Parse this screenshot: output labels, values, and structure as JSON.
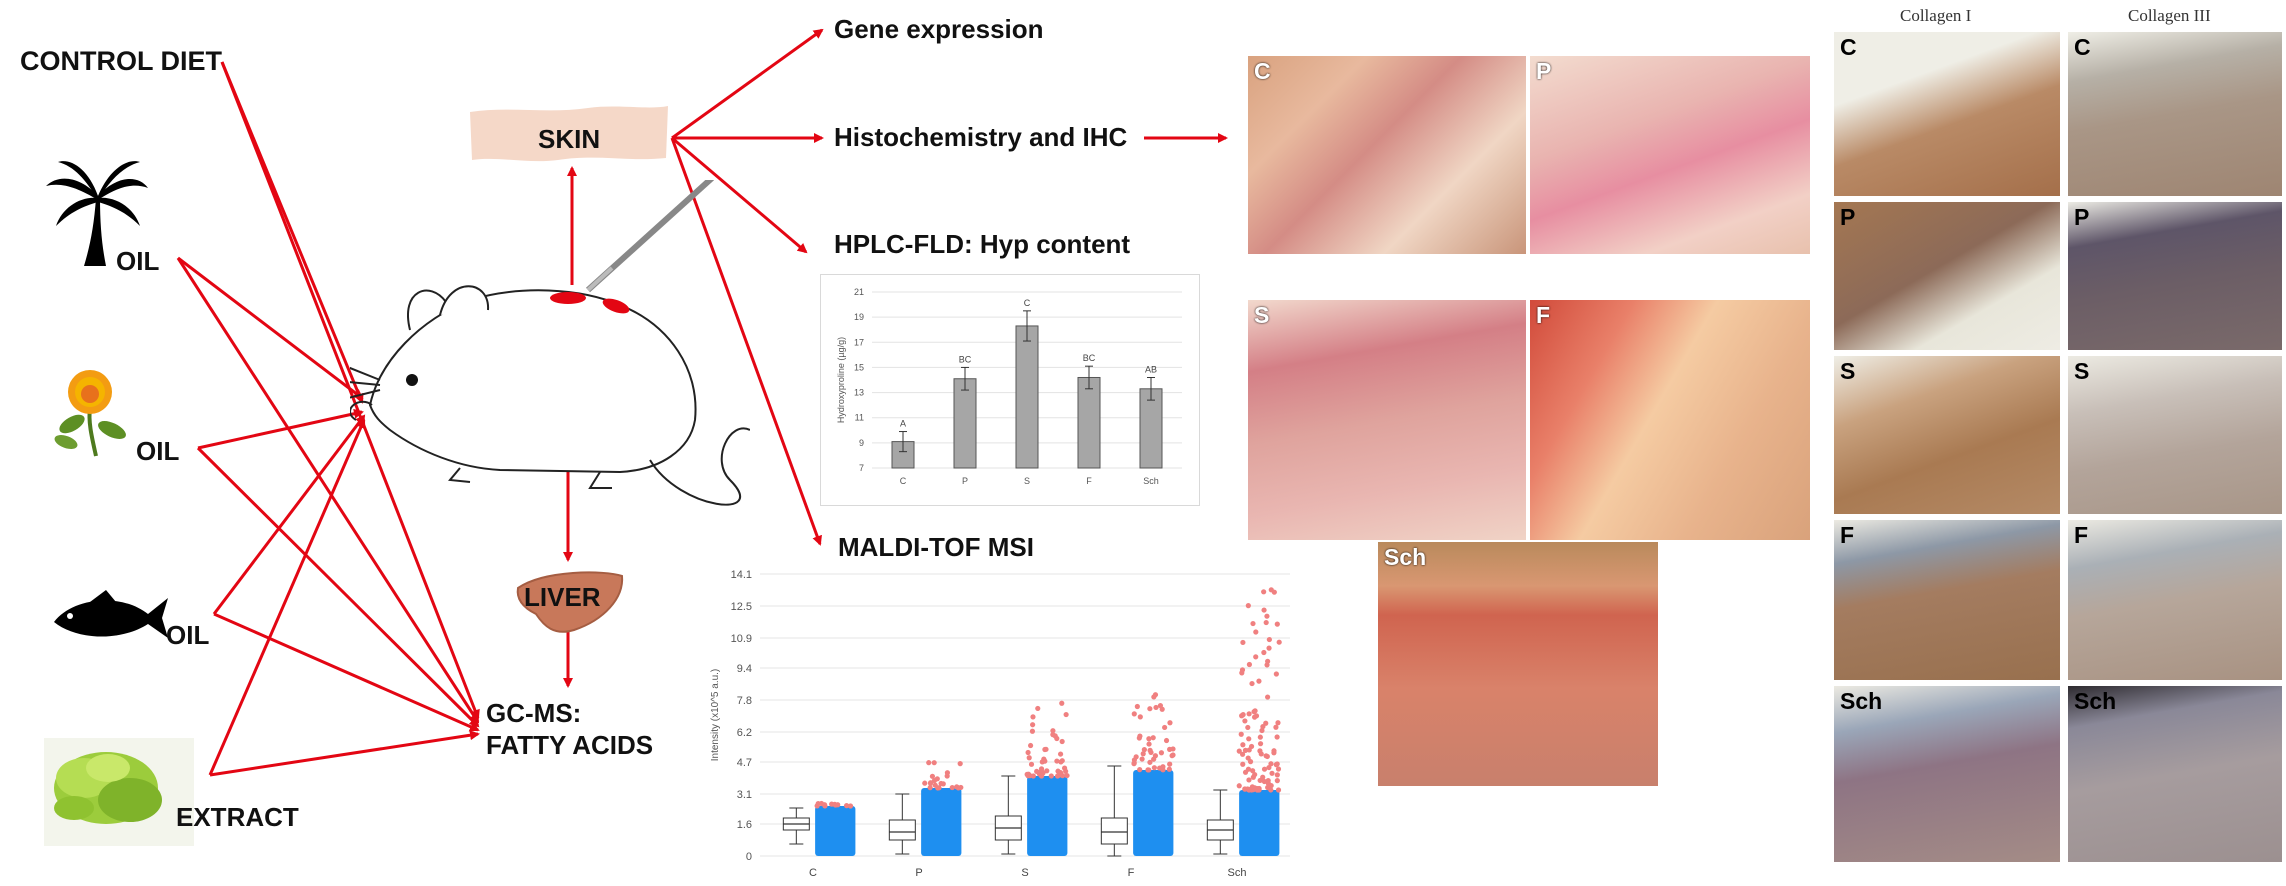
{
  "inputs": {
    "control_diet": "CONTROL DIET",
    "palm_oil": "OIL",
    "safflower_oil": "OIL",
    "fish_oil": "OIL",
    "algae_extract": "EXTRACT"
  },
  "organs": {
    "skin": "SKIN",
    "liver": "LIVER"
  },
  "outputs": {
    "gene_expression": "Gene expression",
    "histochemistry": "Histochemistry and IHC",
    "hplc": "HPLC-FLD: Hyp content",
    "maldi": "MALDI-TOF MSI",
    "gcms_line1": "GC-MS:",
    "gcms_line2": "FATTY ACIDS"
  },
  "colors": {
    "arrow": "#e30613",
    "bar": "#a6a6a6",
    "box_fill": "#1e8ff0",
    "outlier": "#f08080"
  },
  "chart_data": [
    {
      "type": "bar",
      "categories": [
        "C",
        "P",
        "S",
        "F",
        "Sch"
      ],
      "values": [
        9.1,
        14.1,
        18.3,
        14.2,
        13.3
      ],
      "errors": [
        0.8,
        0.9,
        1.2,
        0.9,
        0.9
      ],
      "letters": [
        "A",
        "BC",
        "C",
        "BC",
        "AB"
      ],
      "ylabel": "Hydroxyproline (µg/g)",
      "ylim": [
        7,
        21
      ],
      "yticks": [
        7,
        9,
        11,
        13,
        15,
        17,
        19,
        21
      ],
      "grid": true
    },
    {
      "type": "box",
      "categories": [
        "C",
        "P",
        "S",
        "F",
        "Sch"
      ],
      "ylabel": "Intensity (x10^5 a.u.)",
      "yticks": [
        "0",
        "1.6",
        "3.1",
        "4.7",
        "6.2",
        "7.8",
        "9.4",
        "10.9",
        "12.5",
        "14.1"
      ],
      "ylim": [
        0,
        14.1
      ],
      "box_stats": [
        {
          "min": 0.6,
          "q1": 1.3,
          "median": 1.6,
          "q3": 1.9,
          "max": 2.4
        },
        {
          "min": 0.1,
          "q1": 0.8,
          "median": 1.2,
          "q3": 1.8,
          "max": 3.1
        },
        {
          "min": 0.1,
          "q1": 0.8,
          "median": 1.4,
          "q3": 2.0,
          "max": 4.0
        },
        {
          "min": 0.0,
          "q1": 0.6,
          "median": 1.2,
          "q3": 1.9,
          "max": 4.5
        },
        {
          "min": 0.1,
          "q1": 0.8,
          "median": 1.3,
          "q3": 1.8,
          "max": 3.3
        }
      ],
      "scatter_max": [
        2.5,
        3.4,
        4.0,
        4.3,
        3.3
      ],
      "outlier_max": [
        2.8,
        4.8,
        8.3,
        8.3,
        14.1
      ]
    }
  ],
  "histology": {
    "labels": [
      "C",
      "P",
      "S",
      "F",
      "Sch"
    ]
  },
  "collagen": {
    "col1_title": "Collagen I",
    "col3_title": "Collagen III",
    "rows": [
      "C",
      "P",
      "S",
      "F",
      "Sch"
    ]
  }
}
